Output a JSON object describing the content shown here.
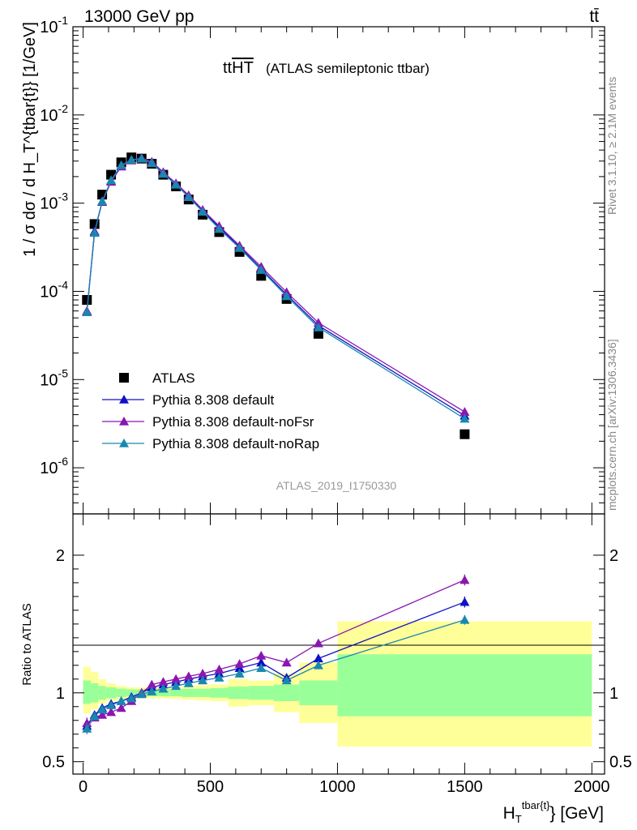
{
  "header": {
    "left": "13000 GeV pp",
    "right": "tt̄",
    "side_top": "Rivet 3.1.10, ≥ 2.1M events",
    "side_bottom": "mcplots.cern.ch [arXiv:1306.3436]",
    "watermark": "ATLAS_2019_I1750330"
  },
  "colors": {
    "data": "#000000",
    "default": "#1010c8",
    "noFsr": "#8a16b0",
    "noRap": "#1888b0",
    "band_inner": "#99ff99",
    "band_outer": "#ffff99"
  },
  "chart_data": [
    {
      "type": "scatter",
      "title_main": "tt",
      "title_overline": "HT",
      "title_suffix": "(ATLAS semileptonic ttbar)",
      "ylabel": "1 / σ dσ / d H_T^{tbar{t}} [1/GeV]",
      "yscale": "log",
      "ylim": [
        3e-07,
        0.1
      ],
      "xlim": [
        -40,
        2050
      ],
      "y_ticks": [
        {
          "exp": "-6",
          "value": 1e-06
        },
        {
          "exp": "-5",
          "value": 1e-05
        },
        {
          "exp": "-4",
          "value": 0.0001
        },
        {
          "exp": "-3",
          "value": 0.001
        },
        {
          "exp": "-2",
          "value": 0.01
        },
        {
          "exp": "-1",
          "value": 0.1
        }
      ],
      "y_tick_base": "10",
      "legend_position": "bottom-left",
      "x": [
        15,
        45,
        75,
        110,
        150,
        190,
        230,
        270,
        315,
        365,
        415,
        470,
        535,
        615,
        700,
        800,
        925,
        1500
      ],
      "series": [
        {
          "name": "ATLAS",
          "key": "data",
          "marker": "square",
          "values": [
            8e-05,
            0.00058,
            0.00125,
            0.0021,
            0.0029,
            0.0033,
            0.0032,
            0.0028,
            0.0021,
            0.00155,
            0.0011,
            0.00074,
            0.00047,
            0.00028,
            0.00015,
            8.2e-05,
            3.3e-05,
            2.4e-06
          ]
        },
        {
          "name": "Pythia 8.308 default",
          "key": "default",
          "marker": "triangle",
          "values": [
            5.9e-05,
            0.00048,
            0.00105,
            0.0018,
            0.00265,
            0.0031,
            0.00325,
            0.0029,
            0.0022,
            0.00165,
            0.0012,
            0.00082,
            0.00053,
            0.00032,
            0.00018,
            9.2e-05,
            4.1e-05,
            3.9e-06
          ]
        },
        {
          "name": "Pythia 8.308 default-noFsr",
          "key": "noFsr",
          "marker": "triangle",
          "values": [
            6e-05,
            0.00047,
            0.00103,
            0.00175,
            0.0026,
            0.00305,
            0.00325,
            0.00295,
            0.00225,
            0.00168,
            0.00123,
            0.00084,
            0.00055,
            0.00033,
            0.00019,
            9.8e-05,
            4.4e-05,
            4.3e-06
          ]
        },
        {
          "name": "Pythia 8.308 default-noRap",
          "key": "noRap",
          "marker": "triangle",
          "values": [
            5.8e-05,
            0.00046,
            0.00105,
            0.00182,
            0.0027,
            0.0031,
            0.0032,
            0.00285,
            0.00215,
            0.00162,
            0.00117,
            0.0008,
            0.00051,
            0.00031,
            0.000175,
            8.8e-05,
            3.9e-05,
            3.6e-06
          ]
        }
      ]
    },
    {
      "type": "scatter",
      "ylabel": "Ratio to ATLAS",
      "xlabel_base": "H",
      "xlabel_sub": "T",
      "xlabel_sup": "tbar{t}",
      "xlabel_unit": "} [GeV]",
      "ylim": [
        0.41,
        2.3
      ],
      "xlim": [
        -40,
        2050
      ],
      "y_ticks": [
        {
          "label": "0.5",
          "value": 0.5
        },
        {
          "label": "1",
          "value": 1
        },
        {
          "label": "2",
          "value": 2
        }
      ],
      "x_ticks": [
        {
          "label": "0",
          "value": 0
        },
        {
          "label": "500",
          "value": 500
        },
        {
          "label": "1000",
          "value": 1000
        },
        {
          "label": "1500",
          "value": 1500
        },
        {
          "label": "2000",
          "value": 2000
        }
      ],
      "bands": [
        {
          "x0": 0,
          "x1": 30,
          "inner": [
            0.92,
            1.09
          ],
          "outer": [
            0.85,
            1.19
          ]
        },
        {
          "x0": 30,
          "x1": 60,
          "inner": [
            0.93,
            1.07
          ],
          "outer": [
            0.88,
            1.15
          ]
        },
        {
          "x0": 60,
          "x1": 90,
          "inner": [
            0.95,
            1.05
          ],
          "outer": [
            0.92,
            1.1
          ]
        },
        {
          "x0": 90,
          "x1": 130,
          "inner": [
            0.96,
            1.04
          ],
          "outer": [
            0.94,
            1.07
          ]
        },
        {
          "x0": 130,
          "x1": 170,
          "inner": [
            0.97,
            1.03
          ],
          "outer": [
            0.95,
            1.05
          ]
        },
        {
          "x0": 170,
          "x1": 210,
          "inner": [
            0.975,
            1.025
          ],
          "outer": [
            0.96,
            1.04
          ]
        },
        {
          "x0": 210,
          "x1": 250,
          "inner": [
            0.975,
            1.025
          ],
          "outer": [
            0.96,
            1.04
          ]
        },
        {
          "x0": 250,
          "x1": 290,
          "inner": [
            0.975,
            1.025
          ],
          "outer": [
            0.96,
            1.04
          ]
        },
        {
          "x0": 290,
          "x1": 340,
          "inner": [
            0.975,
            1.025
          ],
          "outer": [
            0.96,
            1.04
          ]
        },
        {
          "x0": 340,
          "x1": 390,
          "inner": [
            0.975,
            1.025
          ],
          "outer": [
            0.955,
            1.045
          ]
        },
        {
          "x0": 390,
          "x1": 440,
          "inner": [
            0.97,
            1.03
          ],
          "outer": [
            0.95,
            1.05
          ]
        },
        {
          "x0": 440,
          "x1": 500,
          "inner": [
            0.97,
            1.03
          ],
          "outer": [
            0.945,
            1.055
          ]
        },
        {
          "x0": 500,
          "x1": 570,
          "inner": [
            0.965,
            1.035
          ],
          "outer": [
            0.94,
            1.06
          ]
        },
        {
          "x0": 570,
          "x1": 650,
          "inner": [
            0.955,
            1.045
          ],
          "outer": [
            0.9,
            1.1
          ]
        },
        {
          "x0": 650,
          "x1": 750,
          "inner": [
            0.95,
            1.05
          ],
          "outer": [
            0.91,
            1.09
          ]
        },
        {
          "x0": 750,
          "x1": 850,
          "inner": [
            0.94,
            1.06
          ],
          "outer": [
            0.86,
            1.14
          ]
        },
        {
          "x0": 850,
          "x1": 1000,
          "inner": [
            0.91,
            1.09
          ],
          "outer": [
            0.78,
            1.22
          ]
        },
        {
          "x0": 1000,
          "x1": 2000,
          "inner": [
            0.83,
            1.28
          ],
          "outer": [
            0.61,
            1.52
          ]
        }
      ],
      "x": [
        15,
        45,
        75,
        110,
        150,
        190,
        230,
        270,
        315,
        365,
        415,
        470,
        535,
        615,
        700,
        800,
        925,
        1500
      ],
      "series": [
        {
          "name": "Pythia 8.308 default",
          "key": "default",
          "values": [
            0.76,
            0.84,
            0.89,
            0.92,
            0.94,
            0.97,
            1.0,
            1.04,
            1.06,
            1.08,
            1.1,
            1.12,
            1.14,
            1.18,
            1.22,
            1.11,
            1.25,
            1.66
          ],
          "errors": [
            0.04,
            0.02,
            0.015,
            0.01,
            0.01,
            0.01,
            0.01,
            0.01,
            0.01,
            0.01,
            0.01,
            0.01,
            0.01,
            0.012,
            0.015,
            0.015,
            0.02,
            0.04
          ]
        },
        {
          "name": "Pythia 8.308 default-noFsr",
          "key": "noFsr",
          "values": [
            0.78,
            0.82,
            0.84,
            0.86,
            0.89,
            0.94,
            1.0,
            1.06,
            1.08,
            1.1,
            1.12,
            1.14,
            1.17,
            1.21,
            1.27,
            1.22,
            1.36,
            1.82
          ],
          "errors": [
            0.04,
            0.02,
            0.015,
            0.01,
            0.01,
            0.01,
            0.01,
            0.01,
            0.01,
            0.01,
            0.01,
            0.01,
            0.01,
            0.012,
            0.015,
            0.015,
            0.02,
            0.04
          ]
        },
        {
          "name": "Pythia 8.308 default-noRap",
          "key": "noRap",
          "values": [
            0.74,
            0.83,
            0.88,
            0.91,
            0.94,
            0.96,
            0.99,
            1.01,
            1.03,
            1.05,
            1.07,
            1.09,
            1.11,
            1.14,
            1.18,
            1.09,
            1.2,
            1.53
          ],
          "errors": [
            0.04,
            0.02,
            0.015,
            0.01,
            0.01,
            0.01,
            0.01,
            0.01,
            0.01,
            0.01,
            0.01,
            0.01,
            0.01,
            0.012,
            0.015,
            0.015,
            0.02,
            0.035
          ]
        }
      ]
    }
  ]
}
